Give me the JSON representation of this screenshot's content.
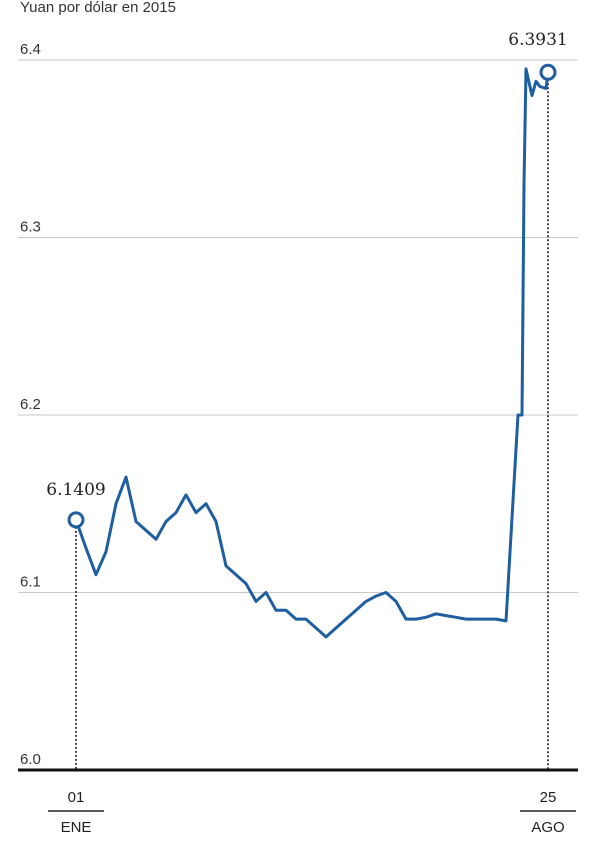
{
  "subtitle": "Yuan por dólar en 2015",
  "chart_data": {
    "type": "line",
    "ylim": [
      6.0,
      6.4
    ],
    "yticks": [
      "6.4",
      "6.3",
      "6.2",
      "6.1",
      "6.0"
    ],
    "grid": true,
    "x_start_label": {
      "day": "01",
      "month": "ENE"
    },
    "x_end_label": {
      "day": "25",
      "month": "AGO"
    },
    "start_value_label": "6.1409",
    "end_value_label": "6.3931",
    "colors": {
      "line": "#1f5fa0",
      "grid": "#c8c8c8",
      "axis": "#111111"
    },
    "series": [
      {
        "x": [
          "2015-01-01",
          "2015-01-06",
          "2015-01-11",
          "2015-01-16",
          "2015-01-21",
          "2015-01-26",
          "2015-01-31",
          "2015-02-05",
          "2015-02-10",
          "2015-02-15",
          "2015-02-20",
          "2015-02-25",
          "2015-03-02",
          "2015-03-07",
          "2015-03-12",
          "2015-03-17",
          "2015-03-22",
          "2015-03-27",
          "2015-04-01",
          "2015-04-06",
          "2015-04-11",
          "2015-04-16",
          "2015-04-21",
          "2015-04-26",
          "2015-05-01",
          "2015-05-06",
          "2015-05-11",
          "2015-05-16",
          "2015-05-21",
          "2015-05-26",
          "2015-05-31",
          "2015-06-05",
          "2015-06-10",
          "2015-06-15",
          "2015-06-20",
          "2015-06-25",
          "2015-06-30",
          "2015-07-05",
          "2015-07-10",
          "2015-07-15",
          "2015-07-20",
          "2015-07-25",
          "2015-07-30",
          "2015-08-04",
          "2015-08-10",
          "2015-08-11",
          "2015-08-12",
          "2015-08-13",
          "2015-08-14",
          "2015-08-17",
          "2015-08-19",
          "2015-08-21",
          "2015-08-24",
          "2015-08-25"
        ],
        "values": [
          6.1409,
          6.125,
          6.11,
          6.123,
          6.15,
          6.165,
          6.14,
          6.135,
          6.13,
          6.14,
          6.145,
          6.155,
          6.145,
          6.15,
          6.14,
          6.115,
          6.11,
          6.105,
          6.095,
          6.1,
          6.09,
          6.09,
          6.085,
          6.085,
          6.08,
          6.075,
          6.08,
          6.085,
          6.09,
          6.095,
          6.098,
          6.1,
          6.095,
          6.085,
          6.085,
          6.086,
          6.088,
          6.087,
          6.086,
          6.085,
          6.085,
          6.085,
          6.085,
          6.084,
          6.2,
          6.2,
          6.2,
          6.33,
          6.395,
          6.38,
          6.388,
          6.385,
          6.384,
          6.3931
        ]
      }
    ]
  }
}
